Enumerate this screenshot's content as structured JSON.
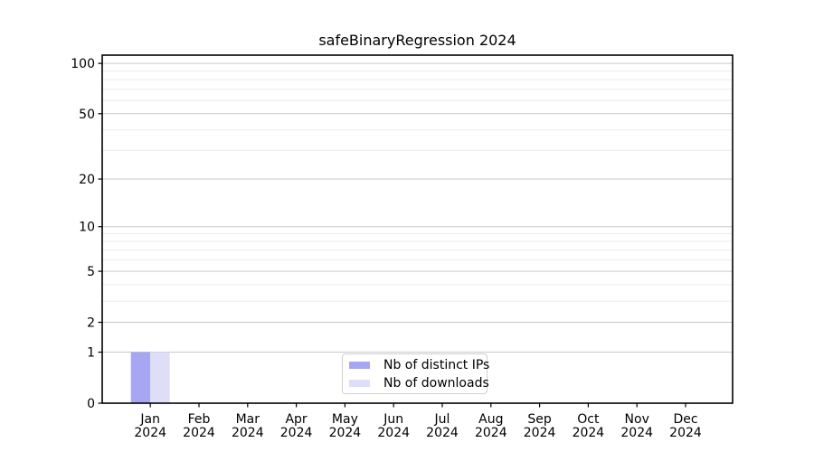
{
  "chart_data": {
    "type": "bar",
    "title": "safeBinaryRegression 2024",
    "categories": [
      "Jan 2024",
      "Feb 2024",
      "Mar 2024",
      "Apr 2024",
      "May 2024",
      "Jun 2024",
      "Jul 2024",
      "Aug 2024",
      "Sep 2024",
      "Oct 2024",
      "Nov 2024",
      "Dec 2024"
    ],
    "series": [
      {
        "name": "Nb of distinct IPs",
        "color": "#a6a6f2",
        "values": [
          1,
          0,
          0,
          0,
          0,
          0,
          0,
          0,
          0,
          0,
          0,
          0
        ]
      },
      {
        "name": "Nb of downloads",
        "color": "#dedef8",
        "values": [
          1,
          0,
          0,
          0,
          0,
          0,
          0,
          0,
          0,
          0,
          0,
          0
        ]
      }
    ],
    "xlabel": "",
    "ylabel": "",
    "yscale": "log1p",
    "ylim": [
      0,
      112
    ],
    "yticks": [
      0,
      1,
      2,
      5,
      10,
      20,
      50,
      100
    ],
    "minor_gridlines": [
      3,
      4,
      6,
      7,
      8,
      9,
      30,
      40,
      60,
      70,
      80,
      90
    ],
    "grid": "horizontal",
    "legend_position": "lower center",
    "colors": {
      "axis": "#000000",
      "text": "#000000",
      "grid_major": "#c9c9c9",
      "grid_minor": "#ebebeb",
      "background": "#ffffff"
    }
  }
}
